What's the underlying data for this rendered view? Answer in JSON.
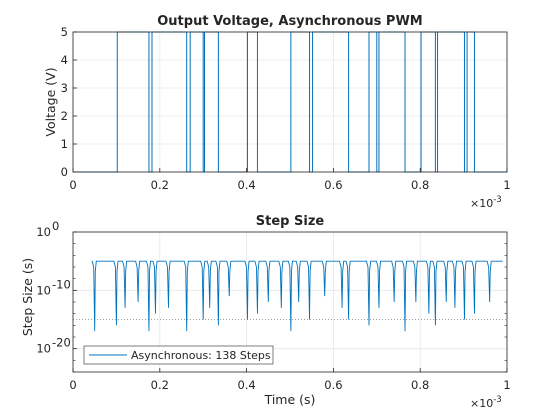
{
  "colors": {
    "series": "#0072BD",
    "axis": "#262626",
    "grid": "#e6e6e6",
    "refline": "#7f7f7f"
  },
  "chart_data": [
    {
      "type": "line",
      "step": true,
      "title": "Output Voltage, Asynchronous PWM",
      "xlabel": "",
      "ylabel": "Voltage (V)",
      "xlim": [
        0,
        0.001
      ],
      "ylim": [
        0,
        5
      ],
      "x_exponent_base": "×10",
      "x_exponent_power": "-3",
      "xticks": [
        0,
        0.2,
        0.4,
        0.6,
        0.8,
        1
      ],
      "xtick_labels": [
        "0",
        "0.2",
        "0.4",
        "0.6",
        "0.8",
        "1"
      ],
      "yticks": [
        0,
        1,
        2,
        3,
        4,
        5
      ],
      "ytick_labels": [
        "0",
        "1",
        "2",
        "3",
        "4",
        "5"
      ],
      "grid": true,
      "series": [
        {
          "high_intervals": [
            [
              0.000102,
              0.000175
            ],
            [
              0.000182,
              0.000262
            ],
            [
              0.00027,
              0.0003
            ],
            [
              0.000303,
              0.000335
            ],
            [
              0.000402,
              0.000425
            ],
            [
              0.000502,
              0.000545
            ],
            [
              0.000552,
              0.000635
            ],
            [
              0.000682,
              0.0007
            ],
            [
              0.000705,
              0.000765
            ],
            [
              0.000802,
              0.000835
            ],
            [
              0.00084,
              0.000902
            ],
            [
              0.000908,
              0.000925
            ]
          ],
          "low": 0,
          "high": 5,
          "x_end": 0.001
        }
      ]
    },
    {
      "type": "line",
      "title": "Step Size",
      "xlabel": "Time (s)",
      "ylabel": "Step Size (s)",
      "xlim": [
        0,
        0.001
      ],
      "ylim_log10": [
        -24,
        0
      ],
      "yscale": "log",
      "x_exponent_base": "×10",
      "x_exponent_power": "-3",
      "xticks": [
        0,
        0.2,
        0.4,
        0.6,
        0.8,
        1
      ],
      "xtick_labels": [
        "0",
        "0.2",
        "0.4",
        "0.6",
        "0.8",
        "1"
      ],
      "yticks_log10": [
        -20,
        -10,
        0
      ],
      "ytick_base": "10",
      "ytick_powers": [
        "-20",
        "-10",
        "0"
      ],
      "grid": true,
      "reference_line_log10": -15,
      "legend": {
        "position": "bottom-left",
        "label": "Asynchronous: 138 Steps"
      },
      "series": [
        {
          "name": "Asynchronous: 138 Steps",
          "baseline_log10": -5,
          "x_end": 0.00099,
          "dips": [
            {
              "t": 5e-05,
              "min_log10": -17
            },
            {
              "t": 0.0001,
              "min_log10": -16
            },
            {
              "t": 0.00012,
              "min_log10": -13
            },
            {
              "t": 0.00015,
              "min_log10": -12
            },
            {
              "t": 0.000175,
              "min_log10": -17
            },
            {
              "t": 0.00019,
              "min_log10": -14
            },
            {
              "t": 0.00022,
              "min_log10": -13
            },
            {
              "t": 0.000262,
              "min_log10": -17
            },
            {
              "t": 0.0003,
              "min_log10": -15
            },
            {
              "t": 0.000315,
              "min_log10": -13
            },
            {
              "t": 0.000335,
              "min_log10": -16
            },
            {
              "t": 0.00036,
              "min_log10": -11
            },
            {
              "t": 0.000402,
              "min_log10": -15
            },
            {
              "t": 0.000425,
              "min_log10": -14
            },
            {
              "t": 0.00045,
              "min_log10": -12
            },
            {
              "t": 0.00048,
              "min_log10": -13
            },
            {
              "t": 0.000502,
              "min_log10": -17
            },
            {
              "t": 0.00052,
              "min_log10": -12
            },
            {
              "t": 0.000545,
              "min_log10": -15
            },
            {
              "t": 0.00058,
              "min_log10": -11
            },
            {
              "t": 0.00062,
              "min_log10": -13
            },
            {
              "t": 0.000635,
              "min_log10": -15
            },
            {
              "t": 0.000682,
              "min_log10": -16
            },
            {
              "t": 0.000705,
              "min_log10": -13
            },
            {
              "t": 0.00074,
              "min_log10": -12
            },
            {
              "t": 0.000765,
              "min_log10": -17
            },
            {
              "t": 0.00079,
              "min_log10": -12
            },
            {
              "t": 0.00082,
              "min_log10": -14
            },
            {
              "t": 0.000835,
              "min_log10": -16
            },
            {
              "t": 0.00086,
              "min_log10": -12
            },
            {
              "t": 0.00088,
              "min_log10": -13
            },
            {
              "t": 0.000902,
              "min_log10": -15
            },
            {
              "t": 0.000925,
              "min_log10": -14
            },
            {
              "t": 0.00096,
              "min_log10": -12
            }
          ]
        }
      ]
    }
  ]
}
